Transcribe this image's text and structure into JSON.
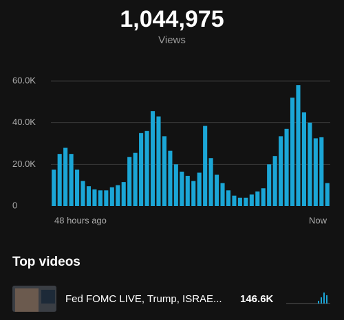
{
  "header": {
    "total": "1,044,975",
    "label": "Views"
  },
  "chart_data": {
    "type": "bar",
    "color": "#1ba6d6",
    "grid": true,
    "categories": [
      null,
      null,
      null,
      null,
      null,
      null,
      null,
      null,
      null,
      null,
      null,
      null,
      null,
      null,
      null,
      null,
      null,
      null,
      null,
      null,
      null,
      null,
      null,
      null,
      null,
      null,
      null,
      null,
      null,
      null,
      null,
      null,
      null,
      null,
      null,
      null,
      null,
      null,
      null,
      null,
      null,
      null,
      null,
      null,
      null,
      null,
      null,
      null
    ],
    "values": [
      17500,
      25000,
      28000,
      25000,
      17500,
      12000,
      9500,
      8000,
      7500,
      7500,
      9000,
      10000,
      11500,
      23500,
      25500,
      35000,
      36000,
      45500,
      43000,
      33500,
      26500,
      20000,
      16500,
      14500,
      12000,
      16000,
      38500,
      23000,
      15000,
      11000,
      7500,
      5000,
      4000,
      4000,
      5500,
      7000,
      8500,
      20000,
      24000,
      33500,
      37000,
      52000,
      58000,
      45000,
      40000,
      32500,
      33000,
      11000
    ],
    "ylim": [
      0,
      60000
    ],
    "yticks": [
      0,
      {
        "value": 20000,
        "label": "20.0K"
      },
      {
        "value": 40000,
        "label": "40.0K"
      },
      {
        "value": 60000,
        "label": "60.0K"
      }
    ],
    "x_start_label": "48 hours ago",
    "x_end_label": "Now"
  },
  "top_videos": {
    "title": "Top videos",
    "items": [
      {
        "title": "Fed FOMC LIVE, Trump, ISRAE...",
        "views": "146.6K"
      }
    ]
  }
}
